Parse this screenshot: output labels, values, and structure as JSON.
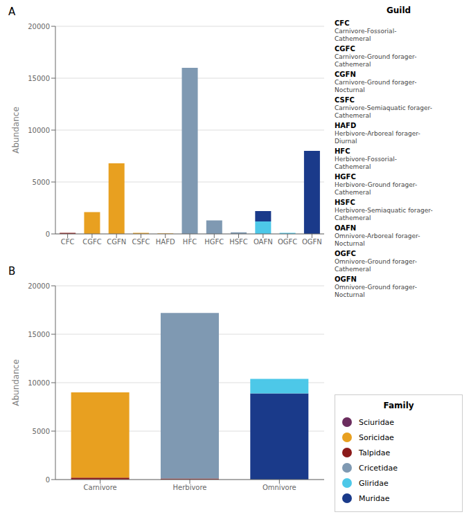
{
  "chart_data": [
    {
      "type": "bar",
      "title": "A",
      "categories": [
        "CFC",
        "CGFC",
        "CGFN",
        "CSFC",
        "HAFD",
        "HFC",
        "HGFC",
        "HSFC",
        "OAFN",
        "OGFC",
        "OGFN"
      ],
      "series": [
        {
          "name": "Sciuridae",
          "color": "#6B2D5E",
          "values": [
            0,
            0,
            0,
            0,
            0,
            0,
            0,
            0,
            0,
            0,
            0
          ]
        },
        {
          "name": "Soricidae",
          "color": "#E8A020",
          "values": [
            0,
            2100,
            6800,
            100,
            50,
            0,
            0,
            0,
            0,
            0,
            0
          ]
        },
        {
          "name": "Talpidae",
          "color": "#8B1A1A",
          "values": [
            100,
            0,
            0,
            0,
            0,
            0,
            0,
            0,
            0,
            0,
            0
          ]
        },
        {
          "name": "Cricetidae",
          "color": "#7F99B2",
          "values": [
            0,
            0,
            0,
            0,
            0,
            16000,
            1300,
            150,
            0,
            0,
            0
          ]
        },
        {
          "name": "Gliridae",
          "color": "#4DC8E8",
          "values": [
            0,
            0,
            0,
            0,
            0,
            0,
            0,
            0,
            1200,
            100,
            0
          ]
        },
        {
          "name": "Muridae",
          "color": "#1A3A8A",
          "values": [
            0,
            0,
            0,
            0,
            0,
            0,
            0,
            0,
            1000,
            0,
            8000
          ]
        }
      ],
      "ylabel": "Abundance",
      "ylim": [
        0,
        20000
      ],
      "yticks": [
        0,
        5000,
        10000,
        15000,
        20000
      ],
      "grid": true,
      "stacked": true,
      "legend": "lower right",
      "annotations": [
        "Guild",
        "CFC",
        "Carnivore-Fossorial-\nCathemeral",
        "CGFC",
        "Carnivore-Ground forager-\nCathemeral",
        "CGFN",
        "Carnivore-Ground forager-\nNocturnal",
        "CSFC",
        "Carnivore-Semiaquatic forager-\nCathemeral",
        "HAFD",
        "Herbivore-Arboreal forager-\nDiurnal",
        "HFC",
        "Herbivore-Fossorial-\nCathemeral",
        "HGFC",
        "Herbivore-Ground forager-\nCathemeral",
        "HSFC",
        "Herbivore-Semiaquatic forager-\nCathemeral",
        "OAFN",
        "Omnivore-Arboreal forager-\nNocturnal",
        "OGFC",
        "Omnivore-Ground forager-\nCathemeral",
        "OGFN",
        "Omnivore-Ground forager-\nNocturnal"
      ]
    },
    {
      "type": "bar",
      "title": "B",
      "categories": [
        "Carnivore",
        "Herbivore",
        "Omnivore"
      ],
      "series": [
        {
          "name": "Talpidae",
          "color": "#8B1A1A",
          "values": [
            200,
            100,
            0
          ]
        },
        {
          "name": "Soricidae",
          "color": "#E8A020",
          "values": [
            8800,
            0,
            0
          ]
        },
        {
          "name": "Cricetidae",
          "color": "#7F99B2",
          "values": [
            0,
            17100,
            0
          ]
        },
        {
          "name": "Muridae",
          "color": "#1A3A8A",
          "values": [
            0,
            0,
            8900
          ]
        },
        {
          "name": "Gliridae",
          "color": "#4DC8E8",
          "values": [
            0,
            0,
            1500
          ]
        },
        {
          "name": "Sciuridae",
          "color": "#6B2D5E",
          "values": [
            0,
            0,
            0
          ]
        }
      ],
      "ylabel": "Abundance",
      "ylim": [
        0,
        20000
      ],
      "yticks": [
        0,
        5000,
        10000,
        15000,
        20000
      ],
      "grid": true,
      "stacked": true,
      "annotations": [
        "Family"
      ]
    }
  ]
}
